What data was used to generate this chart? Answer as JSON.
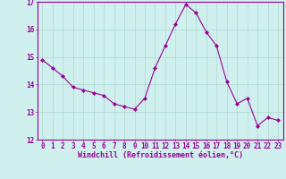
{
  "x": [
    0,
    1,
    2,
    3,
    4,
    5,
    6,
    7,
    8,
    9,
    10,
    11,
    12,
    13,
    14,
    15,
    16,
    17,
    18,
    19,
    20,
    21,
    22,
    23
  ],
  "y": [
    14.9,
    14.6,
    14.3,
    13.9,
    13.8,
    13.7,
    13.6,
    13.3,
    13.2,
    13.1,
    13.5,
    14.6,
    15.4,
    16.2,
    16.9,
    16.6,
    15.9,
    15.4,
    14.1,
    13.3,
    13.5,
    12.5,
    12.8,
    12.7
  ],
  "line_color": "#990099",
  "marker": "D",
  "marker_size": 2.0,
  "bg_color": "#cff0ee",
  "grid_color": "#b0d8d0",
  "xlabel": "Windchill (Refroidissement éolien,°C)",
  "xlabel_color": "#990099",
  "xlabel_fontsize": 6.0,
  "tick_color": "#990099",
  "tick_fontsize": 5.5,
  "ylim": [
    12,
    17
  ],
  "xlim": [
    -0.5,
    23.5
  ],
  "yticks": [
    12,
    13,
    14,
    15,
    16,
    17
  ],
  "xticks": [
    0,
    1,
    2,
    3,
    4,
    5,
    6,
    7,
    8,
    9,
    10,
    11,
    12,
    13,
    14,
    15,
    16,
    17,
    18,
    19,
    20,
    21,
    22,
    23
  ]
}
